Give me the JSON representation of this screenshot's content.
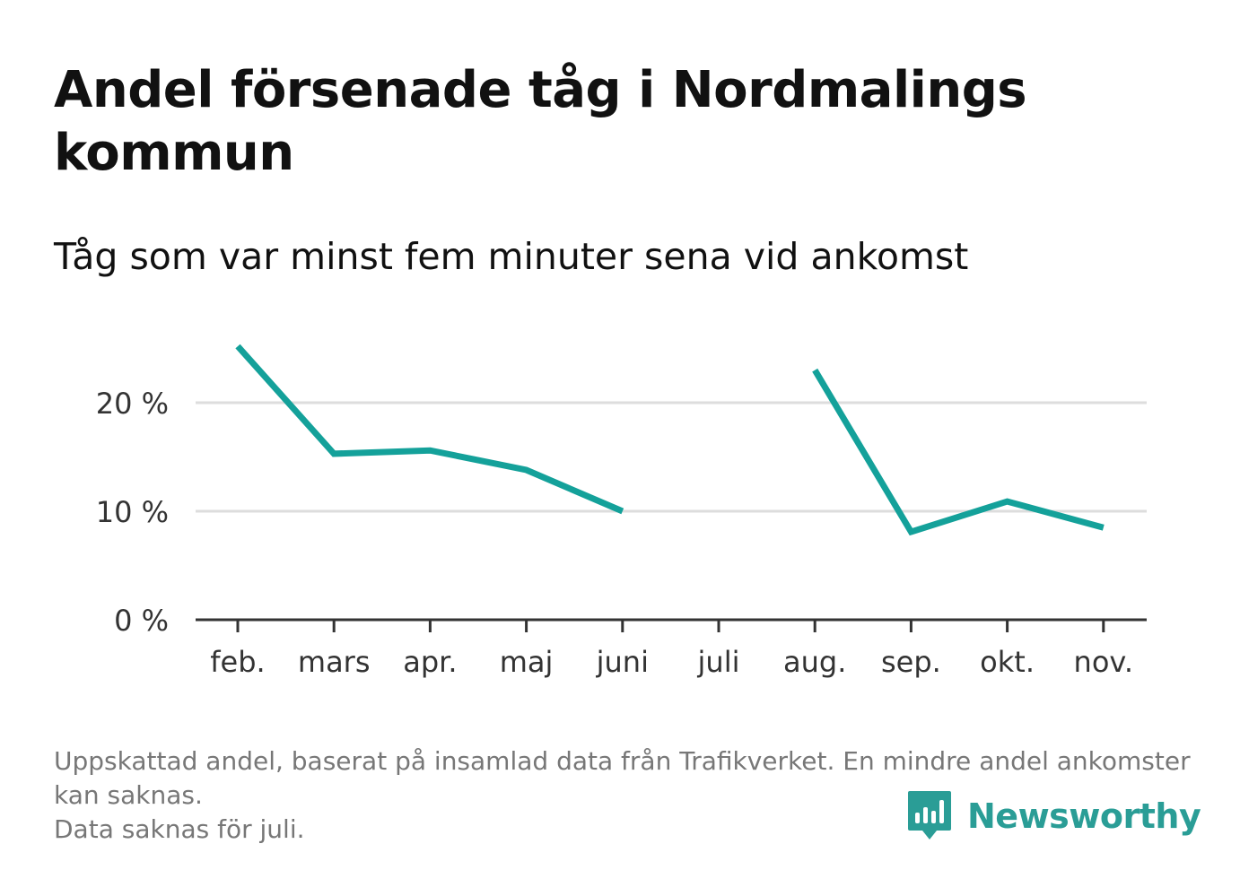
{
  "title": "Andel försenade tåg i Nordmalings kommun",
  "subtitle": "Tåg som var minst fem minuter sena vid ankomst",
  "footnote": {
    "line1": "Uppskattad andel, baserat på insamlad data från Trafikverket. En mindre andel ankomster kan saknas.",
    "line2": "Data saknas för juli."
  },
  "brand": {
    "name": "Newsworthy",
    "logo_icon": "newsworthy-bar-chart-icon",
    "color": "#2a9d96"
  },
  "colors": {
    "line": "#14a19a",
    "grid": "#dddddd",
    "axis": "#333333"
  },
  "chart_data": {
    "type": "line",
    "categories": [
      "feb.",
      "mars",
      "apr.",
      "maj",
      "juni",
      "juli",
      "aug.",
      "sep.",
      "okt.",
      "nov."
    ],
    "series": [
      {
        "values": [
          25.2,
          15.3,
          15.6,
          13.8,
          10.0,
          null,
          23.0,
          8.1,
          10.9,
          8.5
        ]
      }
    ],
    "ylim": [
      0,
      25
    ],
    "yticks": [
      0,
      10,
      20
    ],
    "ytick_labels": [
      "0 %",
      "10 %",
      "20 %"
    ],
    "xlabel": "",
    "ylabel": "",
    "grid": true,
    "legend": "none"
  }
}
